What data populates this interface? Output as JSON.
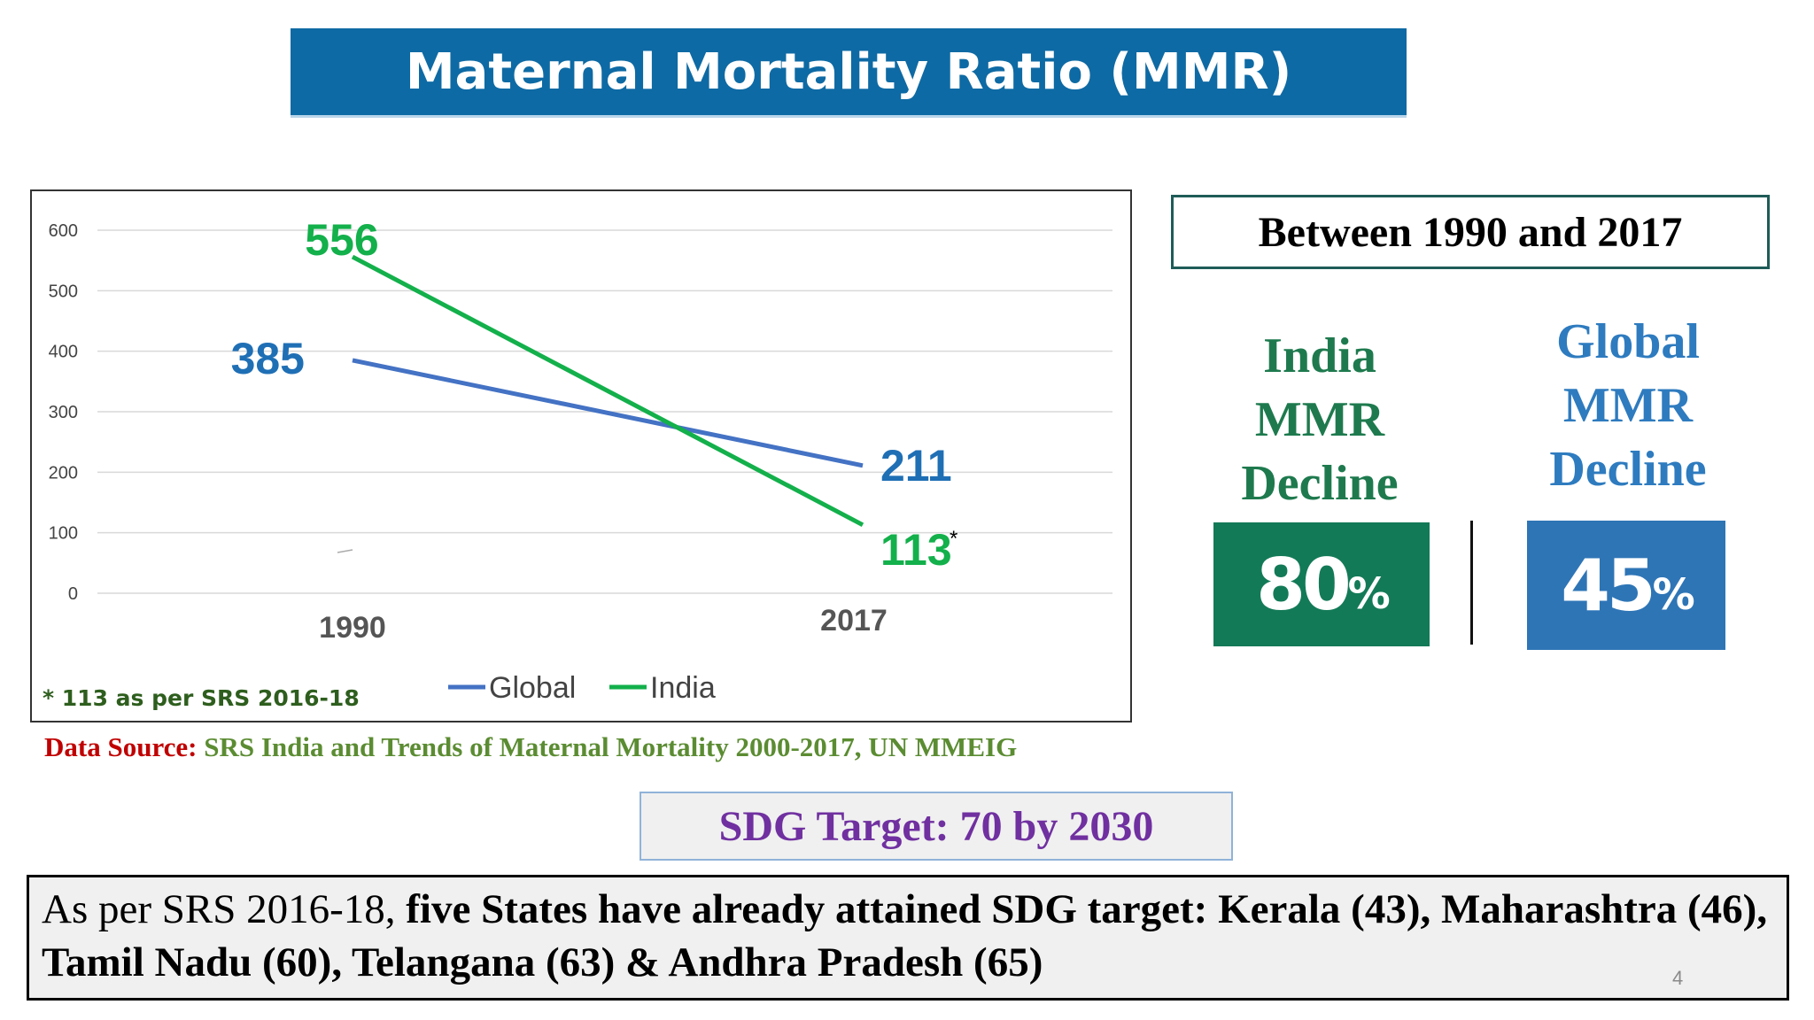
{
  "title": "Maternal Mortality Ratio (MMR)",
  "chart_data": {
    "type": "line",
    "categories": [
      "1990",
      "2017"
    ],
    "series": [
      {
        "name": "Global",
        "values": [
          385,
          211
        ],
        "color": "#4472c4",
        "label_color": "#1f6fb5"
      },
      {
        "name": "India",
        "values": [
          556,
          113
        ],
        "color": "#13b04b",
        "label_color": "#13b04b"
      }
    ],
    "ylim": [
      0,
      600
    ],
    "yticks": [
      0,
      100,
      200,
      300,
      400,
      500,
      600
    ],
    "grid": true,
    "legend": "bottom",
    "annotations": [
      {
        "text": "*",
        "attached_to": "India 2017"
      }
    ],
    "footnote": "* 113 as per SRS 2016-18"
  },
  "data_source": {
    "label": "Data Source:",
    "value": "SRS India and Trends of Maternal Mortality 2000-2017, UN MMEIG"
  },
  "between_heading": "Between 1990 and 2017",
  "india_decline": {
    "lines": [
      "India",
      "MMR",
      "Decline"
    ],
    "value": "80",
    "unit": "%"
  },
  "global_decline": {
    "lines": [
      "Global",
      "MMR",
      "Decline"
    ],
    "value": "45",
    "unit": "%"
  },
  "sdg_target": "SDG Target: 70 by 2030",
  "states_text": {
    "prefix": "As per SRS 2016-18, ",
    "bold": "five States have already attained SDG target: Kerala (43), Maharashtra (46), Tamil Nadu (60), Telangana (63) & Andhra Pradesh (65)"
  },
  "page_number": "4"
}
